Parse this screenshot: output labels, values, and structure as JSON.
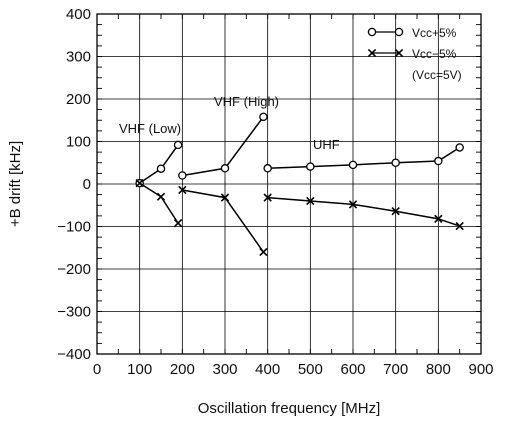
{
  "chart_data": {
    "type": "line",
    "xlabel": "Oscillation frequency [MHz]",
    "ylabel": "+B drift [kHz]",
    "xlim": [
      0,
      900
    ],
    "ylim": [
      -400,
      400
    ],
    "x_ticks": [
      "0",
      "100",
      "200",
      "300",
      "400",
      "500",
      "600",
      "700",
      "800",
      "900"
    ],
    "y_ticks": [
      "400",
      "300",
      "200",
      "100",
      "0",
      "−100",
      "−200",
      "−300",
      "−400"
    ],
    "grid": true,
    "legend": {
      "placement": "top-right",
      "entries": [
        "Vcc+5%",
        "Vcc−5%"
      ],
      "note": "(Vcc=5V)"
    },
    "annotations": {
      "vhf_low": "VHF (Low)",
      "vhf_high": "VHF (High)",
      "uhf": "UHF"
    },
    "series": [
      {
        "name": "Vcc+5%",
        "marker": "circle",
        "segments": [
          {
            "x": [
              100,
              150,
              190
            ],
            "y": [
              2,
              36,
              92
            ]
          },
          {
            "x": [
              200,
              300,
              390
            ],
            "y": [
              20,
              37,
              158
            ]
          },
          {
            "x": [
              400,
              500,
              600,
              700,
              800,
              850
            ],
            "y": [
              37,
              41,
              45,
              50,
              54,
              86
            ]
          }
        ]
      },
      {
        "name": "Vcc−5%",
        "marker": "cross",
        "segments": [
          {
            "x": [
              100,
              150,
              190
            ],
            "y": [
              2,
              -30,
              -92
            ]
          },
          {
            "x": [
              200,
              300,
              390
            ],
            "y": [
              -14,
              -32,
              -160
            ]
          },
          {
            "x": [
              400,
              500,
              600,
              700,
              800,
              850
            ],
            "y": [
              -32,
              -40,
              -48,
              -64,
              -82,
              -99
            ]
          }
        ]
      }
    ]
  }
}
